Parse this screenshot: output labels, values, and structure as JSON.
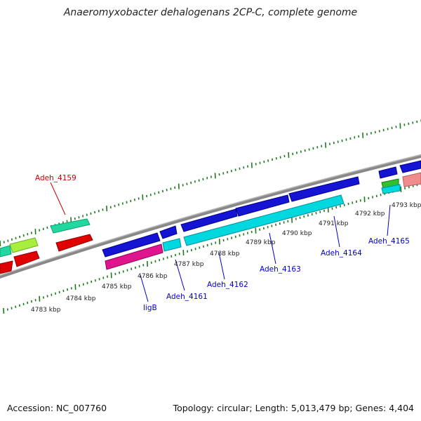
{
  "title": "Anaeromyxobacter dehalogenans 2CP-C, complete genome",
  "footer": {
    "accession": "Accession: NC_007760",
    "summary": "Topology: circular; Length: 5,013,479 bp; Genes: 4,404"
  },
  "scale": [
    {
      "label": "4783 kbp",
      "kbp": 4783
    },
    {
      "label": "4784 kbp",
      "kbp": 4784
    },
    {
      "label": "4785 kbp",
      "kbp": 4785
    },
    {
      "label": "4786 kbp",
      "kbp": 4786
    },
    {
      "label": "4787 kbp",
      "kbp": 4787
    },
    {
      "label": "4788 kbp",
      "kbp": 4788
    },
    {
      "label": "4789 kbp",
      "kbp": 4789
    },
    {
      "label": "4790 kbp",
      "kbp": 4790
    },
    {
      "label": "4791 kbp",
      "kbp": 4791
    },
    {
      "label": "4792 kbp",
      "kbp": 4792
    },
    {
      "label": "4793 kbp",
      "kbp": 4793
    }
  ],
  "gene_labels": [
    {
      "text": "Adeh_4159",
      "color": "#cc0000"
    },
    {
      "text": "ligB",
      "color": "#0000cc"
    },
    {
      "text": "Adeh_4161",
      "color": "#0000cc"
    },
    {
      "text": "Adeh_4162",
      "color": "#0000cc"
    },
    {
      "text": "Adeh_4163",
      "color": "#0000cc"
    },
    {
      "text": "Adeh_4164",
      "color": "#0000cc"
    },
    {
      "text": "Adeh_4165",
      "color": "#0000cc"
    }
  ],
  "colors": {
    "backbone": "#888888",
    "tick": "#1f7a1f",
    "feature_blue": "#1414d2",
    "feature_red": "#e00000",
    "feature_cyan": "#00d8e0",
    "feature_magenta": "#e0148c",
    "feature_teal": "#20d8a0",
    "feature_lime": "#a8ee3c",
    "feature_green": "#30c030",
    "feature_salmon": "#f08c8c"
  }
}
